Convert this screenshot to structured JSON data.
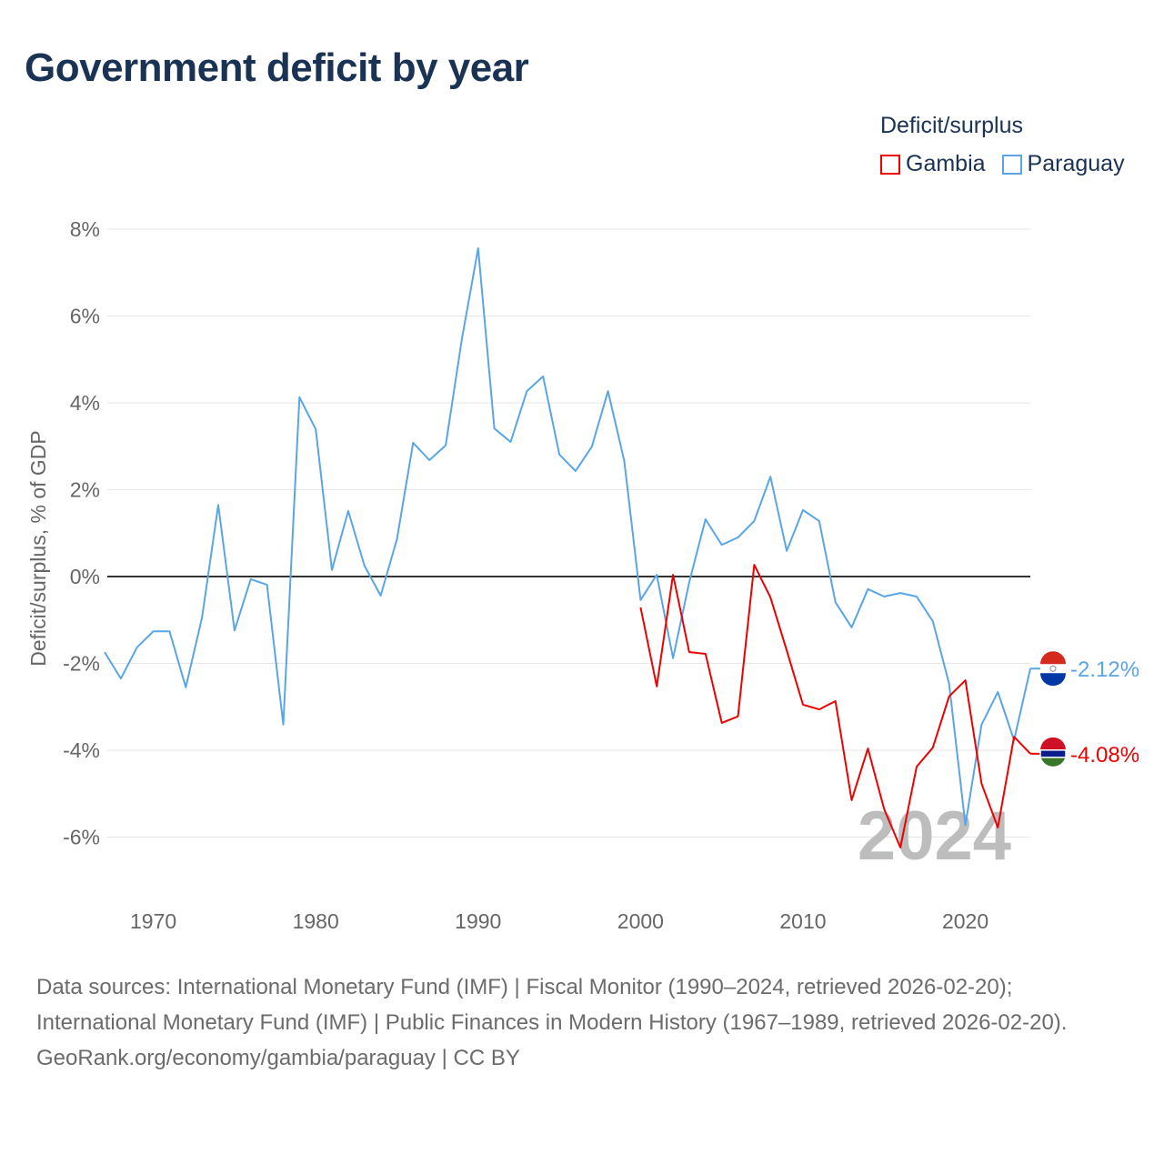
{
  "title": "Government deficit by year",
  "legend": {
    "title": "Deficit/surplus",
    "items": [
      {
        "name": "Gambia",
        "color": "#ee0000"
      },
      {
        "name": "Paraguay",
        "color": "#5aa5e6"
      }
    ]
  },
  "chart_data": {
    "type": "line",
    "title": "Government deficit by year",
    "xlabel": "",
    "ylabel": "Deficit/surplus, % of GDP",
    "xlim": [
      1967,
      2024
    ],
    "ylim": [
      -7,
      8
    ],
    "x_ticks": [
      1970,
      1980,
      1990,
      2000,
      2010,
      2020
    ],
    "x_tick_labels": [
      "1970",
      "1980",
      "1990",
      "2000",
      "2010",
      "2020"
    ],
    "y_ticks": [
      8,
      6,
      4,
      2,
      0,
      -2,
      -4,
      -6
    ],
    "y_tick_labels": [
      "8%",
      "6%",
      "4%",
      "2%",
      "0%",
      "-2%",
      "-4%",
      "-6%"
    ],
    "grid": true,
    "year_watermark": "2024",
    "series": [
      {
        "name": "Paraguay",
        "color": "#5aa5e6",
        "end_label": "-2.12%",
        "start": 1967,
        "values": [
          -1.74,
          -2.35,
          -1.63,
          -1.26,
          -1.26,
          -2.55,
          -0.94,
          1.65,
          -1.24,
          -0.06,
          -0.19,
          -3.41,
          4.13,
          3.39,
          0.15,
          1.51,
          0.25,
          -0.44,
          0.86,
          3.08,
          2.68,
          3.02,
          5.47,
          7.56,
          3.41,
          3.1,
          4.27,
          4.61,
          2.81,
          2.43,
          2.99,
          4.27,
          2.66,
          -0.54,
          0.04,
          -1.88,
          -0.13,
          1.32,
          0.73,
          0.9,
          1.28,
          2.3,
          0.59,
          1.53,
          1.28,
          -0.59,
          -1.17,
          -0.29,
          -0.46,
          -0.38,
          -0.46,
          -1.03,
          -2.47,
          -5.72,
          -3.41,
          -2.66,
          -3.77,
          -2.12
        ]
      },
      {
        "name": "Gambia",
        "color": "#ee0000",
        "end_label": "-4.08%",
        "start": 2000,
        "values": [
          -0.71,
          -2.53,
          0.04,
          -1.74,
          -1.78,
          -3.37,
          -3.22,
          0.27,
          -0.48,
          -1.7,
          -2.95,
          -3.06,
          -2.87,
          -5.15,
          -3.96,
          -5.36,
          -6.24,
          -4.38,
          -3.94,
          -2.76,
          -2.39,
          -4.77,
          -5.78,
          -3.69,
          -4.08
        ]
      }
    ]
  },
  "footer": {
    "sources": "Data sources: International Monetary Fund (IMF) | Fiscal Monitor (1990–2024, retrieved 2026-02-20); International Monetary Fund (IMF) | Public Finances in Modern History (1967–1989, retrieved 2026-02-20).",
    "credit": "GeoRank.org/economy/gambia/paraguay | CC BY"
  }
}
